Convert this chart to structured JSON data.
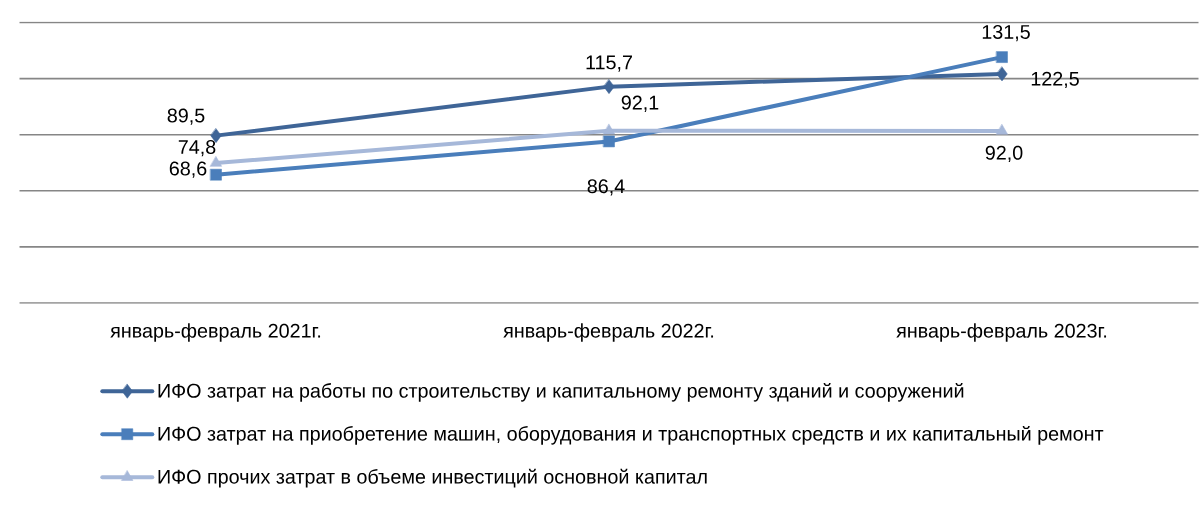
{
  "chart_data": {
    "type": "line",
    "categories": [
      "январь-февраль 2021г.",
      "январь-февраль 2022г.",
      "январь-февраль 2023г."
    ],
    "series": [
      {
        "name": "ИФО затрат на работы по строительству и капитальному ремонту зданий и сооружений",
        "color": "#3f6597",
        "marker": "diamond",
        "values": [
          89.5,
          115.7,
          122.5
        ],
        "value_labels": [
          "89,5",
          "115,7",
          "122,5"
        ]
      },
      {
        "name": "ИФО затрат на приобретение машин, оборудования и транспортных средств и их капитальный ремонт",
        "color": "#4a7ebb",
        "marker": "square",
        "values": [
          68.6,
          86.4,
          131.5
        ],
        "value_labels": [
          "68,6",
          "86,4",
          "131,5"
        ]
      },
      {
        "name": "ИФО прочих затрат в объеме инвестиций основной капитал",
        "color": "#a6b8d9",
        "marker": "triangle",
        "values": [
          74.8,
          92.1,
          92.0
        ],
        "value_labels": [
          "74,8",
          "92,1",
          "92,0"
        ]
      }
    ],
    "ylim": [
      0,
      150
    ],
    "yticks": [
      {
        "value": 0,
        "label": null
      },
      {
        "value": 30,
        "label": null
      },
      {
        "value": 60,
        "label": null
      },
      {
        "value": 90,
        "label": null
      },
      {
        "value": 120,
        "label": null
      },
      {
        "value": 150,
        "label": null
      }
    ],
    "grid": "y",
    "tick_labels": "x",
    "legend": "bottom",
    "line_style": "solid"
  }
}
